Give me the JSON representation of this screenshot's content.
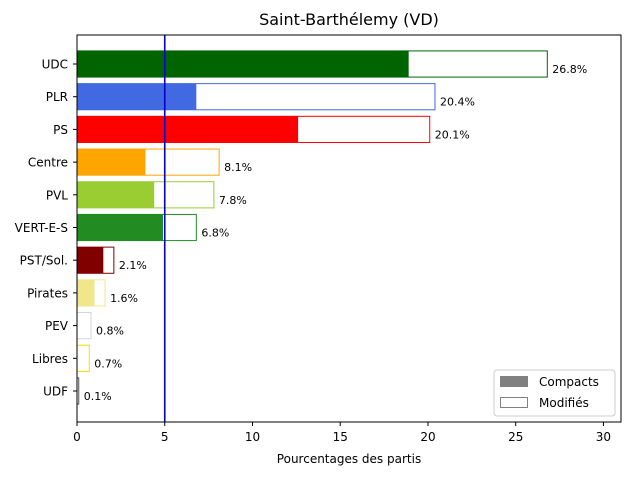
{
  "chart_data": {
    "type": "bar",
    "orientation": "horizontal",
    "title": "Saint-Barthélemy (VD)",
    "xlabel": "Pourcentages des partis",
    "ylabel": "",
    "xlim": [
      0,
      31
    ],
    "xticks": [
      0,
      5,
      10,
      15,
      20,
      25,
      30
    ],
    "threshold": 5,
    "threshold_color": "#0000cc",
    "grid": false,
    "legend_position": "bottom-right",
    "legend": [
      {
        "label": "Compacts",
        "style": "filled",
        "color": "#808080"
      },
      {
        "label": "Modifiés",
        "style": "outline",
        "color": "#808080"
      }
    ],
    "parties": [
      {
        "name": "UDC",
        "compact": 18.9,
        "total": 26.8,
        "label": "26.8%",
        "color": "#006400"
      },
      {
        "name": "PLR",
        "compact": 6.8,
        "total": 20.4,
        "label": "20.4%",
        "color": "#4169e1"
      },
      {
        "name": "PS",
        "compact": 12.6,
        "total": 20.1,
        "label": "20.1%",
        "color": "#ff0000"
      },
      {
        "name": "Centre",
        "compact": 3.9,
        "total": 8.1,
        "label": "8.1%",
        "color": "#ffa500"
      },
      {
        "name": "PVL",
        "compact": 4.4,
        "total": 7.8,
        "label": "7.8%",
        "color": "#9acd32"
      },
      {
        "name": "VERT-E-S",
        "compact": 4.9,
        "total": 6.8,
        "label": "6.8%",
        "color": "#228b22"
      },
      {
        "name": "PST/Sol.",
        "compact": 1.5,
        "total": 2.1,
        "label": "2.1%",
        "color": "#800000"
      },
      {
        "name": "Pirates",
        "compact": 1.0,
        "total": 1.6,
        "label": "1.6%",
        "color": "#f0e68c"
      },
      {
        "name": "PEV",
        "compact": 0.0,
        "total": 0.8,
        "label": "0.8%",
        "color": "#d3d3d3"
      },
      {
        "name": "Libres",
        "compact": 0.0,
        "total": 0.7,
        "label": "0.7%",
        "color": "#ffd700"
      },
      {
        "name": "UDF",
        "compact": 0.0,
        "total": 0.1,
        "label": "0.1%",
        "color": "#555555"
      }
    ]
  }
}
